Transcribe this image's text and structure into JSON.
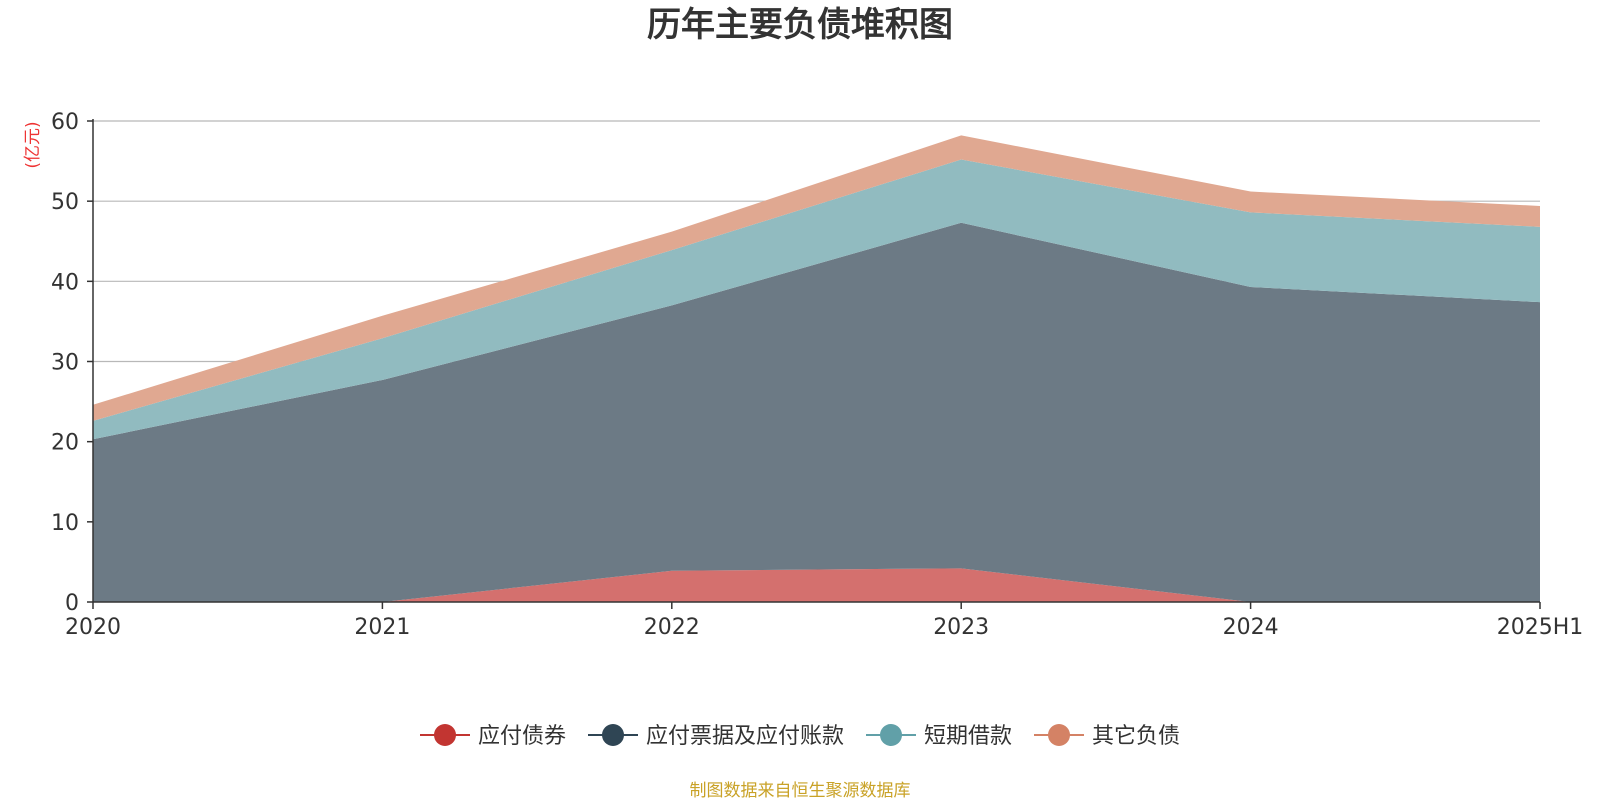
{
  "chart_data": {
    "type": "area",
    "stacked": true,
    "title": "历年主要负债堆积图",
    "ylabel": "(亿元)",
    "xlabel": "",
    "categories": [
      "2020",
      "2021",
      "2022",
      "2023",
      "2024",
      "2025H1"
    ],
    "ylim": [
      0,
      60
    ],
    "yticks": [
      0,
      10,
      20,
      30,
      40,
      50,
      60
    ],
    "grid": true,
    "legend_position": "bottom-center",
    "series": [
      {
        "name": "应付债券",
        "color": "#c23531",
        "fill": "#d4706e",
        "values": [
          0,
          0,
          3.9,
          4.2,
          0,
          0
        ]
      },
      {
        "name": "应付票据及应付账款",
        "color": "#2f4554",
        "fill": "#6c7a85",
        "values": [
          20.3,
          27.7,
          33.1,
          43.1,
          39.3,
          37.4
        ]
      },
      {
        "name": "短期借款",
        "color": "#61a0a8",
        "fill": "#91bbc0",
        "values": [
          2.3,
          5.2,
          6.9,
          7.9,
          9.3,
          9.4
        ]
      },
      {
        "name": "其它负债",
        "color": "#d48265",
        "fill": "#e0a891",
        "values": [
          2.0,
          2.8,
          2.3,
          3.0,
          2.6,
          2.6
        ]
      }
    ],
    "source_note": "制图数据来自恒生聚源数据库"
  }
}
